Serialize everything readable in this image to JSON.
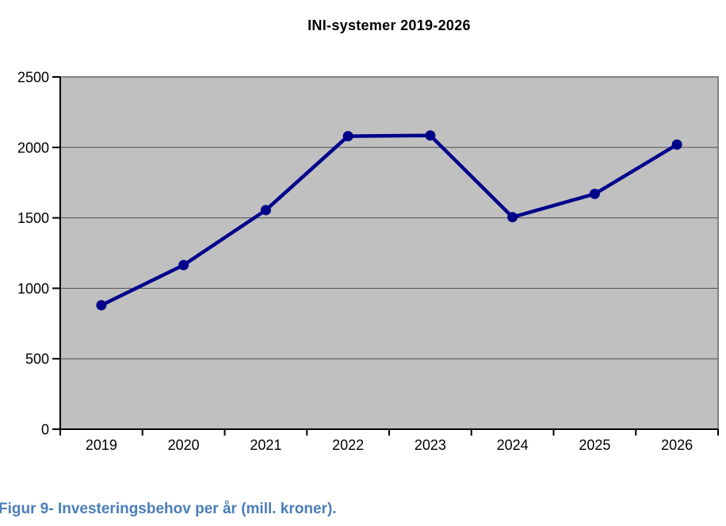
{
  "title": "INI-systemer 2019-2026",
  "caption": "Figur 9- Investeringsbehov per år (mill. kroner).",
  "chart_data": {
    "type": "line",
    "title": "INI-systemer 2019-2026",
    "categories": [
      "2019",
      "2020",
      "2021",
      "2022",
      "2023",
      "2024",
      "2025",
      "2026"
    ],
    "values": [
      880,
      1165,
      1555,
      2080,
      2085,
      1505,
      1670,
      2020
    ],
    "xlabel": "",
    "ylabel": "",
    "ylim": [
      0,
      2500
    ],
    "ytick_step": 500,
    "ytick_labels": [
      "0",
      "500",
      "1000",
      "1500",
      "2000",
      "2500"
    ],
    "grid": true,
    "legend": false,
    "marker": "circle",
    "colors": {
      "series": "#00008B",
      "plot_background": "#C0C0C0",
      "plot_border": "#808080",
      "gridline": "#4D4D4D",
      "axis": "#000000",
      "title": "#000000",
      "caption": "#4A7EBB"
    }
  }
}
